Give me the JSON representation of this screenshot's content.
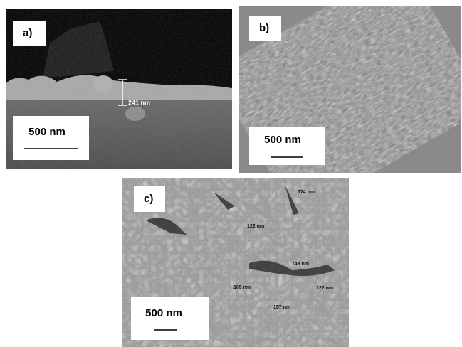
{
  "panels": [
    {
      "label": "a)",
      "scale_bar": "500 nm",
      "measurements": [
        "241 nm"
      ]
    },
    {
      "label": "b)",
      "scale_bar": "500 nm",
      "measurements": []
    },
    {
      "label": "c)",
      "scale_bar": "500 nm",
      "measurements": [
        "174 nm",
        "122 nm",
        "148 nm",
        "165 nm",
        "122 nm",
        "157 nm"
      ]
    }
  ]
}
